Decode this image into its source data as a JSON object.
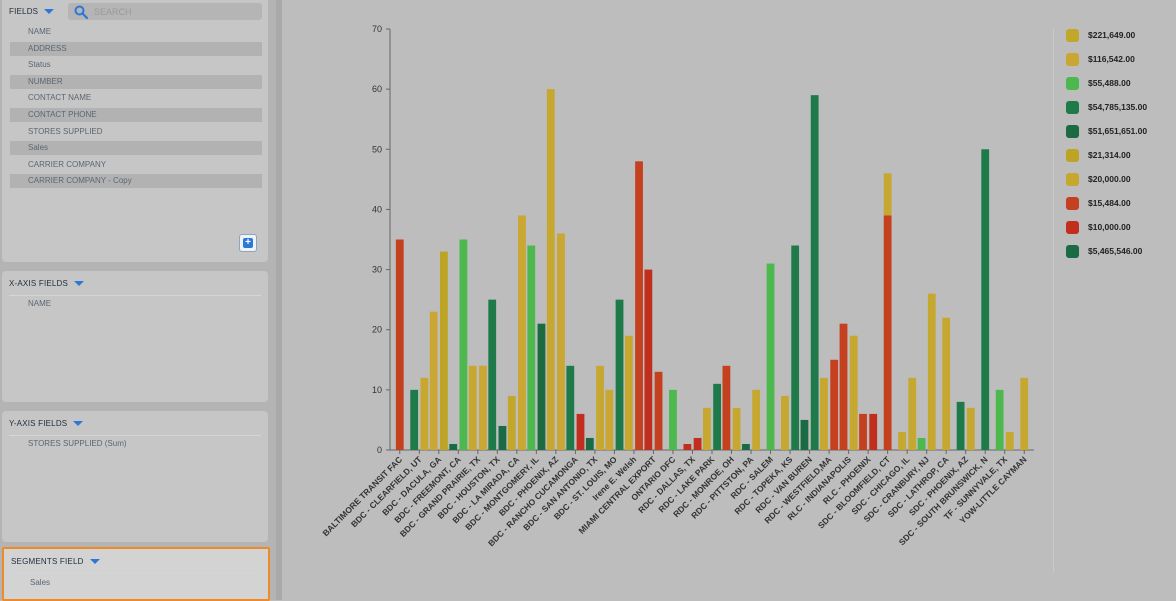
{
  "left_panel": {
    "fields": {
      "title": "FIELDS",
      "search_placeholder": "SEARCH",
      "items": [
        "NAME",
        "ADDRESS",
        "Status",
        "NUMBER",
        "CONTACT NAME",
        "CONTACT PHONE",
        "STORES SUPPLIED",
        "Sales",
        "CARRIER COMPANY",
        "CARRIER COMPANY - Copy"
      ]
    },
    "x_axis": {
      "title": "X-AXIS FIELDS",
      "items": [
        "NAME"
      ]
    },
    "y_axis": {
      "title": "Y-AXIS FIELDS",
      "items": [
        "STORES SUPPLIED (Sum)"
      ]
    },
    "segments": {
      "title": "SEGMENTS FIELD",
      "items": [
        "Sales"
      ]
    }
  },
  "colors": {
    "c221649": "#c3a72b",
    "c116542": "#c9a732",
    "c55488": "#4db84d",
    "c54785135": "#1f7a4a",
    "c51651651": "#1c6a40",
    "c21314": "#bda424",
    "c20000": "#c6a72f",
    "c15484": "#c4401f",
    "c10000": "#c22e1d",
    "c5465546": "#1a6b43"
  },
  "legend": [
    {
      "label": "$221,649.00",
      "color": "#c3a72b"
    },
    {
      "label": "$116,542.00",
      "color": "#c9a732"
    },
    {
      "label": "$55,488.00",
      "color": "#4db84d"
    },
    {
      "label": "$54,785,135.00",
      "color": "#1f7a4a"
    },
    {
      "label": "$51,651,651.00",
      "color": "#1c6a40"
    },
    {
      "label": "$21,314.00",
      "color": "#bda424"
    },
    {
      "label": "$20,000.00",
      "color": "#c6a72f"
    },
    {
      "label": "$15,484.00",
      "color": "#c4401f"
    },
    {
      "label": "$10,000.00",
      "color": "#c22e1d"
    },
    {
      "label": "$5,465,546.00",
      "color": "#1a6b43"
    }
  ],
  "chart_data": {
    "type": "bar",
    "ylim": [
      0,
      70
    ],
    "yticks": [
      0,
      10,
      20,
      30,
      40,
      50,
      60,
      70
    ],
    "grid": false,
    "legend_position": "right",
    "categories": [
      "BALTIMORE TRANSIT FAC",
      "BDC - CLEARFIELD, UT",
      "BDC - DACULA, GA",
      "BDC - FREEMONT, CA",
      "BDC - GRAND PRAIRIE, TX",
      "BDC - HOUSTON, TX",
      "BDC - LA MIRADA, CA",
      "BDC - MONTGOMERY, IL",
      "BDC - PHOENIX, AZ",
      "BDC - RANCHO CUCAMONGA",
      "BDC - SAN ANTONIO, TX",
      "BDC - ST. LOUIS, MO",
      "Irene E. Welsh",
      "MIAMI CENTRAL EXPORT",
      "ONTARIO DFC",
      "RDC - DALLAS, TX",
      "RDC - LAKE PARK",
      "RDC - MONROE, OH",
      "RDC - PITTSTON, PA",
      "RDC - SALEM",
      "RDC - TOPEKA, KS",
      "RDC - VAN BUREN",
      "RDC - WESTFIELD,MA",
      "RLC - INDIANAPOLIS",
      "RLC - PHOENIX",
      "SDC - BLOOMFIELD, CT",
      "SDC - CHICAGO, IL",
      "SDC - CRANBURY, NJ",
      "SDC - LATHROP, CA",
      "SDC - PHOENIX, AZ",
      "SDC - SOUTH BRUNSWICK, N",
      "TF - SUNNYVALE, TX",
      "YOW-LITTLE CAYMAN"
    ],
    "bars": [
      [
        {
          "v": 35,
          "c": "c15484"
        }
      ],
      [
        {
          "v": 10,
          "c": "c54785135"
        },
        {
          "v": 12,
          "c": "c20000"
        }
      ],
      [
        {
          "v": 23,
          "c": "c116542"
        },
        {
          "v": 33,
          "c": "c21314"
        }
      ],
      [
        {
          "v": 1,
          "c": "c5465546"
        },
        {
          "v": 35,
          "c": "c55488"
        }
      ],
      [
        {
          "v": 14,
          "c": "c20000"
        },
        {
          "v": 14,
          "c": "c116542"
        }
      ],
      [
        {
          "v": 25,
          "c": "c54785135"
        },
        {
          "v": 4,
          "c": "c5465546"
        }
      ],
      [
        {
          "v": 9,
          "c": "c221649"
        },
        {
          "v": 39,
          "c": "c116542"
        }
      ],
      [
        {
          "v": 34,
          "c": "c55488"
        },
        {
          "v": 21,
          "c": "c51651651"
        }
      ],
      [
        {
          "v": 60,
          "c": "c20000"
        },
        {
          "v": 36,
          "c": "c116542"
        }
      ],
      [
        {
          "v": 14,
          "c": "c54785135"
        },
        {
          "v": 6,
          "c": "c10000"
        }
      ],
      [
        {
          "v": 2,
          "c": "c5465546"
        },
        {
          "v": 14,
          "c": "c20000"
        }
      ],
      [
        {
          "v": 10,
          "c": "c116542"
        },
        {
          "v": 25,
          "c": "c54785135"
        }
      ],
      [
        {
          "v": 19,
          "c": "c20000"
        },
        {
          "v": 48,
          "c": "c15484"
        }
      ],
      [
        {
          "v": 30,
          "c": "c10000"
        },
        {
          "v": 13,
          "c": "c15484"
        }
      ],
      [
        {
          "v": 10,
          "c": "c55488"
        }
      ],
      [
        {
          "v": 1,
          "c": "c10000"
        },
        {
          "v": 2,
          "c": "c10000"
        }
      ],
      [
        {
          "v": 7,
          "c": "c20000"
        },
        {
          "v": 11,
          "c": "c54785135"
        }
      ],
      [
        {
          "v": 14,
          "c": "c15484"
        },
        {
          "v": 7,
          "c": "c20000"
        }
      ],
      [
        {
          "v": 1,
          "c": "c5465546"
        },
        {
          "v": 10,
          "c": "c20000"
        }
      ],
      [
        {
          "v": 31,
          "c": "c55488"
        }
      ],
      [
        {
          "v": 9,
          "c": "c20000"
        },
        {
          "v": 34,
          "c": "c54785135"
        }
      ],
      [
        {
          "v": 5,
          "c": "c5465546"
        },
        {
          "v": 59,
          "c": "c54785135"
        }
      ],
      [
        {
          "v": 12,
          "c": "c20000"
        },
        {
          "v": 15,
          "c": "c15484"
        }
      ],
      [
        {
          "v": 21,
          "c": "c15484"
        },
        {
          "v": 19,
          "c": "c20000"
        }
      ],
      [
        {
          "v": 6,
          "c": "c15484"
        },
        {
          "v": 6,
          "c": "c10000"
        }
      ],
      [
        {
          "v": 46,
          "c": "c15484",
          "top": "c20000",
          "split": 39
        }
      ],
      [
        {
          "v": 3,
          "c": "c20000"
        },
        {
          "v": 12,
          "c": "c20000"
        }
      ],
      [
        {
          "v": 2,
          "c": "c55488"
        },
        {
          "v": 26,
          "c": "c20000"
        }
      ],
      [
        {
          "v": 22,
          "c": "c20000"
        }
      ],
      [
        {
          "v": 8,
          "c": "c54785135"
        },
        {
          "v": 7,
          "c": "c20000"
        }
      ],
      [
        {
          "v": 50,
          "c": "c54785135"
        }
      ],
      [
        {
          "v": 10,
          "c": "c55488"
        },
        {
          "v": 3,
          "c": "c20000"
        }
      ],
      [
        {
          "v": 12,
          "c": "c20000"
        }
      ]
    ]
  }
}
